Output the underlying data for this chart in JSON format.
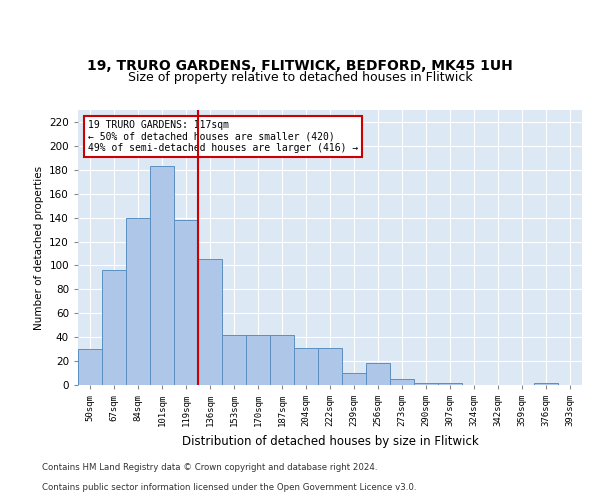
{
  "title_line1": "19, TRURO GARDENS, FLITWICK, BEDFORD, MK45 1UH",
  "title_line2": "Size of property relative to detached houses in Flitwick",
  "xlabel": "Distribution of detached houses by size in Flitwick",
  "ylabel": "Number of detached properties",
  "categories": [
    "50sqm",
    "67sqm",
    "84sqm",
    "101sqm",
    "119sqm",
    "136sqm",
    "153sqm",
    "170sqm",
    "187sqm",
    "204sqm",
    "222sqm",
    "239sqm",
    "256sqm",
    "273sqm",
    "290sqm",
    "307sqm",
    "324sqm",
    "342sqm",
    "359sqm",
    "376sqm",
    "393sqm"
  ],
  "values": [
    30,
    96,
    140,
    183,
    138,
    105,
    42,
    42,
    42,
    31,
    31,
    10,
    18,
    5,
    2,
    2,
    0,
    0,
    0,
    2,
    0
  ],
  "bar_color": "#aec6e8",
  "bar_edge_color": "#5a8fc0",
  "vline_x": 4.5,
  "vline_color": "#cc0000",
  "annotation_text": "19 TRURO GARDENS: 117sqm\n← 50% of detached houses are smaller (420)\n49% of semi-detached houses are larger (416) →",
  "annotation_box_color": "#ffffff",
  "annotation_box_edge": "#cc0000",
  "ylim": [
    0,
    230
  ],
  "yticks": [
    0,
    20,
    40,
    60,
    80,
    100,
    120,
    140,
    160,
    180,
    200,
    220
  ],
  "footer_line1": "Contains HM Land Registry data © Crown copyright and database right 2024.",
  "footer_line2": "Contains public sector information licensed under the Open Government Licence v3.0.",
  "background_color": "#dde8f5",
  "title_fontsize": 10,
  "subtitle_fontsize": 9
}
